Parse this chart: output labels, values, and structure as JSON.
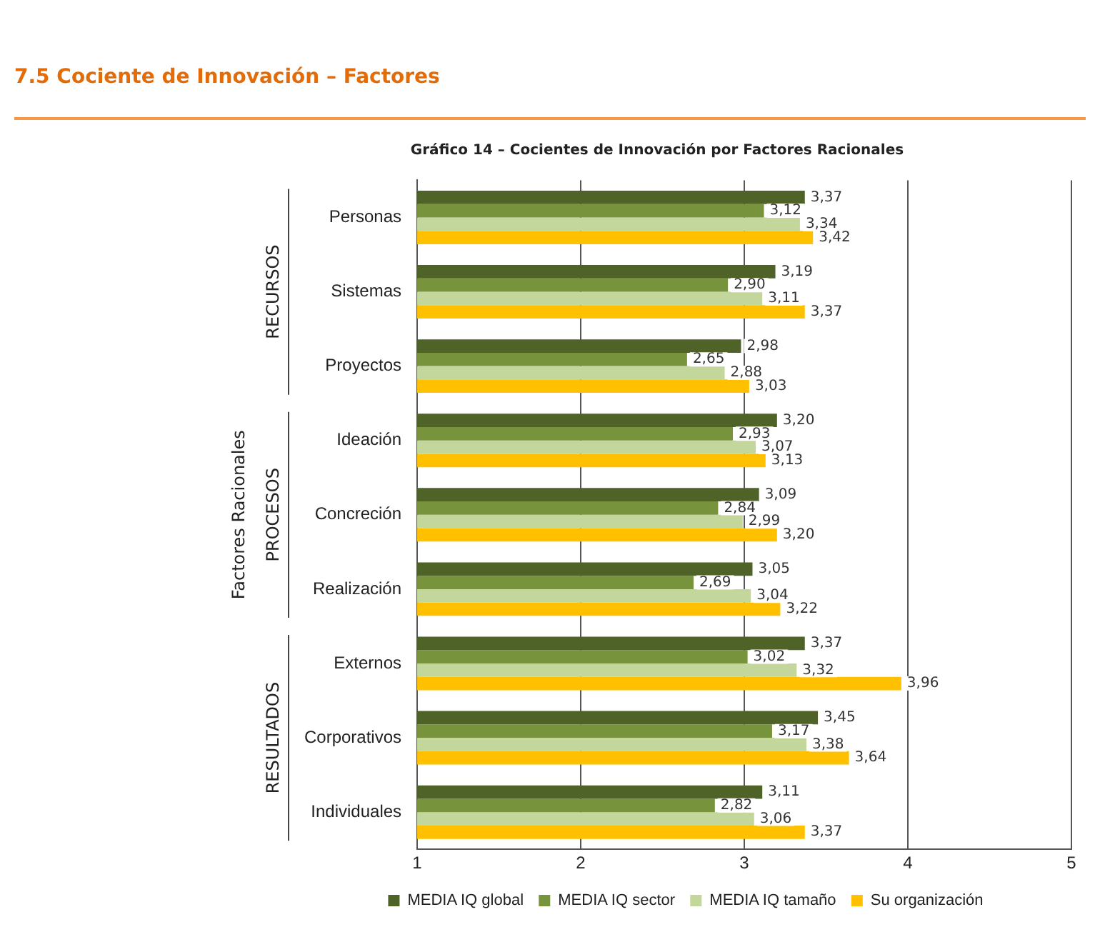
{
  "chart_data": {
    "type": "bar",
    "orientation": "horizontal",
    "title": "7.5    Cociente de Innovación – Factores",
    "subtitle": "Gráfico 14 – Cocientes de Innovación por Factores Racionales",
    "ylabel": "Factores Racionales",
    "categories": [
      "Personas",
      "Sistemas",
      "Proyectos",
      "Ideación",
      "Concreción",
      "Realización",
      "Externos",
      "Corporativos",
      "Individuales"
    ],
    "series": [
      {
        "name": "MEDIA IQ global",
        "color": "#4f6228",
        "values": [
          3.37,
          3.19,
          2.98,
          3.2,
          3.09,
          3.05,
          3.37,
          3.45,
          3.11
        ],
        "value_labels": [
          "3,37",
          "3,19",
          "2,98",
          "3,20",
          "3,09",
          "3,05",
          "3,37",
          "3,45",
          "3,11"
        ]
      },
      {
        "name": "MEDIA IQ sector",
        "color": "#77933c",
        "values": [
          3.12,
          2.9,
          2.65,
          2.93,
          2.84,
          2.69,
          3.02,
          3.17,
          2.82
        ],
        "value_labels": [
          "3,12",
          "2,90",
          "2,65",
          "2,93",
          "2,84",
          "2,69",
          "3,02",
          "3,17",
          "2,82"
        ]
      },
      {
        "name": "MEDIA IQ tamaño",
        "color": "#c3d69b",
        "values": [
          3.34,
          3.11,
          2.88,
          3.07,
          2.99,
          3.04,
          3.32,
          3.38,
          3.06
        ],
        "value_labels": [
          "3,34",
          "3,11",
          "2,88",
          "3,07",
          "2,99",
          "3,04",
          "3,32",
          "3,38",
          "3,06"
        ]
      },
      {
        "name": "Su organización",
        "color": "#ffc000",
        "values": [
          3.42,
          3.37,
          3.03,
          3.13,
          3.2,
          3.22,
          3.96,
          3.64,
          3.37
        ],
        "value_labels": [
          "3,42",
          "3,37",
          "3,03",
          "3,13",
          "3,20",
          "3,22",
          "3,96",
          "3,64",
          "3,37"
        ]
      }
    ],
    "annotations": [
      {
        "text": "RECURSOS",
        "y": "Sistemas"
      },
      {
        "text": "PROCESOS",
        "y": "Concreción"
      },
      {
        "text": "RESULTADOS",
        "y": "Corporativos"
      }
    ],
    "xlim": [
      1,
      5
    ],
    "xticks": [
      1,
      2,
      3,
      4,
      5
    ],
    "grid": "x",
    "legend": "bottom"
  }
}
